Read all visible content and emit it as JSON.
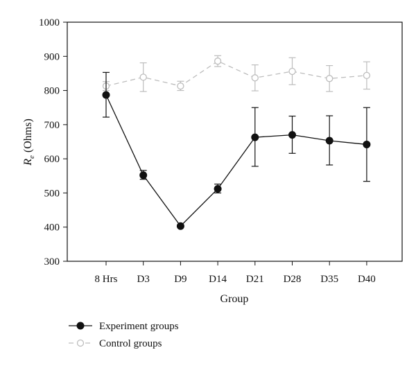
{
  "chart_data": {
    "type": "line",
    "categories": [
      "8 Hrs",
      "D3",
      "D9",
      "D14",
      "D21",
      "D28",
      "D35",
      "D40"
    ],
    "xlabel": "Group",
    "ylabel": {
      "symbol": "R",
      "subscript": "e",
      "unit": "(Ohms)"
    },
    "ylim": [
      300,
      1000
    ],
    "yticks": [
      300,
      400,
      500,
      600,
      700,
      800,
      900,
      1000
    ],
    "grid": false,
    "legend_position": "bottom-left",
    "series": [
      {
        "name": "Experiment groups",
        "color": "#111111",
        "marker": "filled-circle",
        "line_style": "solid",
        "values": [
          787,
          552,
          403,
          512,
          663,
          670,
          653,
          642
        ],
        "error_low": [
          722,
          540,
          400,
          500,
          578,
          616,
          582,
          534
        ],
        "error_high": [
          853,
          566,
          406,
          526,
          750,
          725,
          726,
          750
        ]
      },
      {
        "name": "Control groups",
        "color": "#bdbdbd",
        "marker": "open-circle",
        "line_style": "dashed",
        "values": [
          813,
          839,
          813,
          886,
          837,
          856,
          835,
          844
        ],
        "error_low": [
          800,
          797,
          800,
          870,
          799,
          817,
          797,
          804
        ],
        "error_high": [
          826,
          881,
          827,
          902,
          875,
          896,
          873,
          884
        ]
      }
    ]
  }
}
